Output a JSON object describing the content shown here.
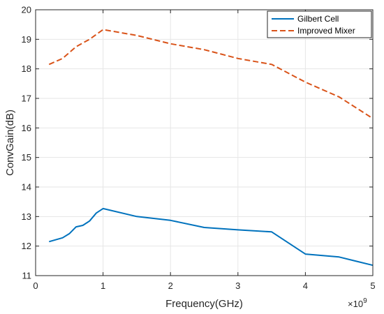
{
  "chart_data": {
    "type": "line",
    "title": "",
    "xlabel": "Frequency(GHz)",
    "ylabel": "ConvGain(dB)",
    "x_exponent_label": "×10",
    "x_exponent_power": "9",
    "xlim": [
      0,
      5
    ],
    "ylim": [
      11,
      20
    ],
    "x_ticks": [
      "0",
      "1",
      "2",
      "3",
      "4",
      "5"
    ],
    "y_ticks": [
      "11",
      "12",
      "13",
      "14",
      "15",
      "16",
      "17",
      "18",
      "19",
      "20"
    ],
    "grid": true,
    "legend_position": "top-right",
    "series": [
      {
        "name": "Gilbert Cell",
        "color": "#0072BD",
        "style": "solid",
        "x": [
          0.2,
          0.4,
          0.5,
          0.6,
          0.7,
          0.8,
          0.9,
          1.0,
          1.5,
          2.0,
          2.5,
          3.0,
          3.5,
          4.0,
          4.5,
          5.0
        ],
        "y": [
          12.15,
          12.28,
          12.42,
          12.65,
          12.7,
          12.85,
          13.12,
          13.27,
          13.0,
          12.87,
          12.63,
          12.55,
          12.48,
          11.73,
          11.63,
          11.35
        ]
      },
      {
        "name": "Improved Mixer",
        "color": "#D95319",
        "style": "dashed",
        "x": [
          0.2,
          0.4,
          0.6,
          0.8,
          1.0,
          1.5,
          2.0,
          2.5,
          3.0,
          3.5,
          4.0,
          4.5,
          5.0
        ],
        "y": [
          18.15,
          18.35,
          18.75,
          19.0,
          19.33,
          19.13,
          18.85,
          18.65,
          18.35,
          18.15,
          17.55,
          17.05,
          16.32
        ]
      }
    ]
  }
}
